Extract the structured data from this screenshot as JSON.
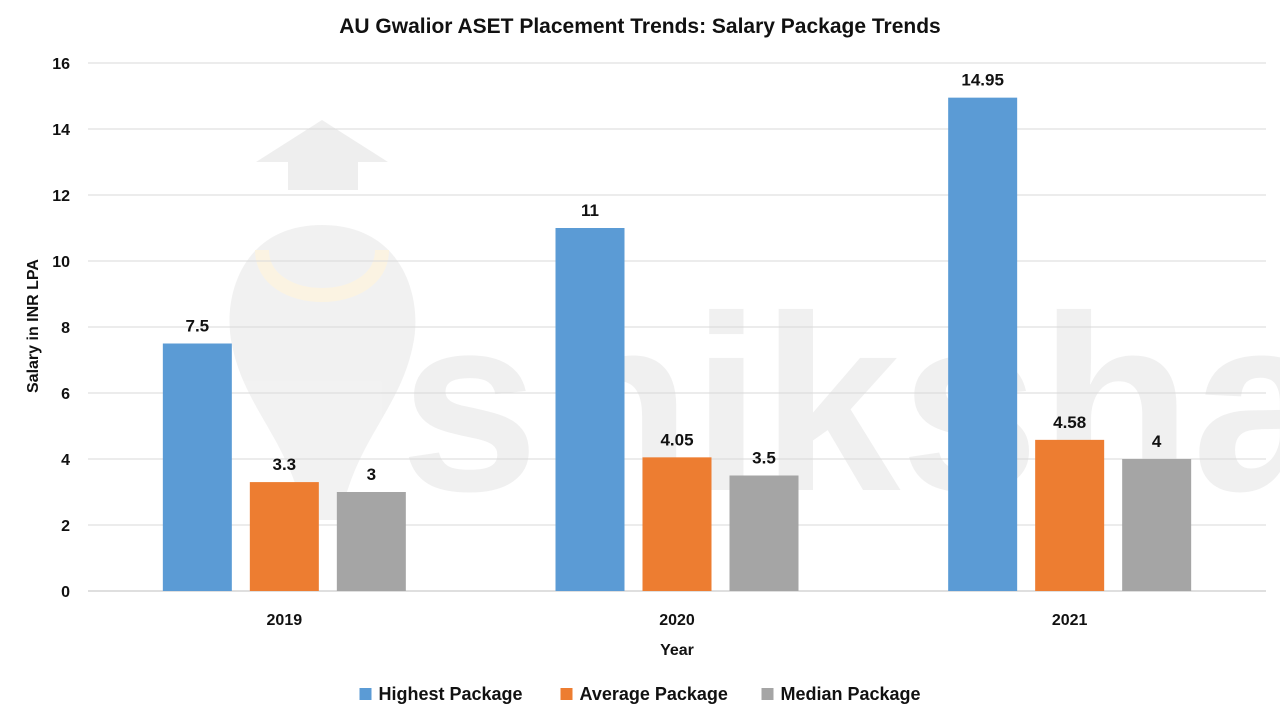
{
  "watermark": {
    "text": "shiksha"
  },
  "chart_data": {
    "type": "bar",
    "title": "AU Gwalior ASET Placement Trends: Salary Package Trends",
    "xlabel": "Year",
    "ylabel": "Salary in INR LPA",
    "ylim": [
      0,
      16
    ],
    "yticks": [
      0,
      2,
      4,
      6,
      8,
      10,
      12,
      14,
      16
    ],
    "grid": true,
    "legend_position": "bottom",
    "categories": [
      "2019",
      "2020",
      "2021"
    ],
    "series": [
      {
        "name": "Highest Package",
        "color": "#5b9bd5",
        "values": [
          7.5,
          11,
          14.95
        ],
        "labels": [
          "7.5",
          "11",
          "14.95"
        ]
      },
      {
        "name": "Average Package",
        "color": "#ed7d31",
        "values": [
          3.3,
          4.05,
          4.58
        ],
        "labels": [
          "3.3",
          "4.05",
          "4.58"
        ]
      },
      {
        "name": "Median Package",
        "color": "#a5a5a5",
        "values": [
          3,
          3.5,
          4
        ],
        "labels": [
          "3",
          "3.5",
          "4"
        ]
      }
    ]
  }
}
